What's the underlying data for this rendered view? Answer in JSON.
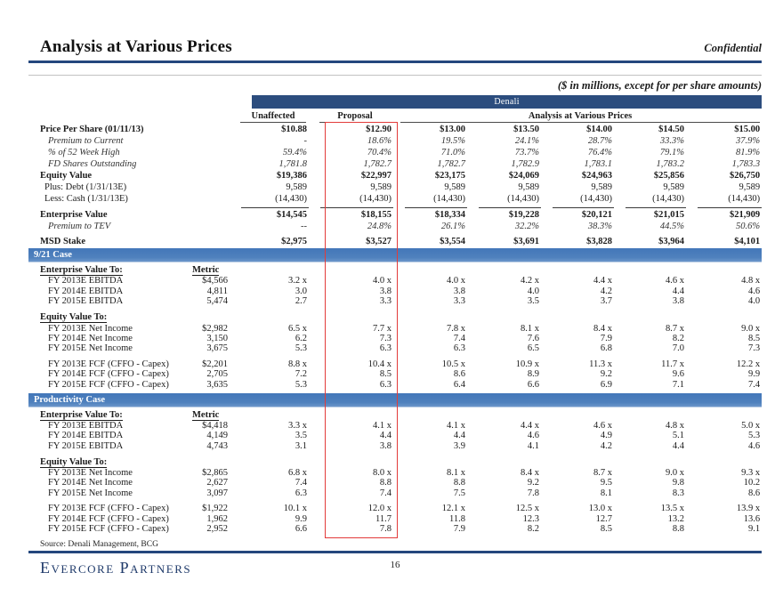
{
  "page": {
    "title": "Analysis at Various Prices",
    "confidential": "Confidential",
    "units_note": "($ in millions, except for per share amounts)",
    "source": "Source: Denali Management, BCG",
    "footer_logo": "Evercore Partners",
    "page_number": "16"
  },
  "colors": {
    "accent_navy": "#24477d",
    "company_band_navy": "#2c4d7e",
    "case_band_blue": "#4f81bd",
    "highlight_red": "#e23b3a"
  },
  "table": {
    "company_band": "Denali",
    "col_headers": {
      "unaffected": "Unaffected",
      "proposal": "Proposal",
      "avp": "Analysis at Various Prices"
    },
    "price_columns": [
      "$13.00",
      "$13.50",
      "$14.00",
      "$14.50",
      "$15.00"
    ],
    "top_rows": [
      {
        "label": "Price Per Share (01/11/13)",
        "style": "bold",
        "values": [
          "$10.88",
          "$12.90",
          "$13.00",
          "$13.50",
          "$14.00",
          "$14.50",
          "$15.00"
        ]
      },
      {
        "label": "Premium to Current",
        "style": "italic",
        "values": [
          "-",
          "18.6%",
          "19.5%",
          "24.1%",
          "28.7%",
          "33.3%",
          "37.9%"
        ]
      },
      {
        "label": "% of 52 Week High",
        "style": "italic",
        "values": [
          "59.4%",
          "70.4%",
          "71.0%",
          "73.7%",
          "76.4%",
          "79.1%",
          "81.9%"
        ]
      },
      {
        "label": "FD Shares Outstanding",
        "style": "italic",
        "values": [
          "1,781.8",
          "1,782.7",
          "1,782.7",
          "1,782.9",
          "1,783.1",
          "1,783.2",
          "1,783.3"
        ]
      },
      {
        "label": "Equity Value",
        "style": "bold",
        "values": [
          "$19,386",
          "$22,997",
          "$23,175",
          "$24,069",
          "$24,963",
          "$25,856",
          "$26,750"
        ]
      },
      {
        "label": "Plus: Debt (1/31/13E)",
        "style": "sub",
        "values": [
          "9,589",
          "9,589",
          "9,589",
          "9,589",
          "9,589",
          "9,589",
          "9,589"
        ]
      },
      {
        "label": "Less: Cash (1/31/13E)",
        "style": "sub",
        "values": [
          "(14,430)",
          "(14,430)",
          "(14,430)",
          "(14,430)",
          "(14,430)",
          "(14,430)",
          "(14,430)"
        ]
      },
      {
        "label": "Enterprise Value",
        "style": "bold total",
        "values": [
          "$14,545",
          "$18,155",
          "$18,334",
          "$19,228",
          "$20,121",
          "$21,015",
          "$21,909"
        ]
      },
      {
        "label": "Premium to TEV",
        "style": "italic",
        "values": [
          "--",
          "24.8%",
          "26.1%",
          "32.2%",
          "38.3%",
          "44.5%",
          "50.6%"
        ]
      },
      {
        "label": "MSD Stake",
        "style": "bold msd",
        "values": [
          "$2,975",
          "$3,527",
          "$3,554",
          "$3,691",
          "$3,828",
          "$3,964",
          "$4,101"
        ]
      }
    ],
    "sections": [
      {
        "band": "9/21 Case",
        "groups": [
          {
            "header": "Enterprise Value To:",
            "metric_header": "Metric",
            "rows": [
              {
                "label": "FY 2013E EBITDA",
                "metric": "$4,566",
                "values": [
                  "3.2 x",
                  "4.0 x",
                  "4.0 x",
                  "4.2 x",
                  "4.4 x",
                  "4.6 x",
                  "4.8 x"
                ]
              },
              {
                "label": "FY 2014E EBITDA",
                "metric": "4,811",
                "values": [
                  "3.0",
                  "3.8",
                  "3.8",
                  "4.0",
                  "4.2",
                  "4.4",
                  "4.6"
                ]
              },
              {
                "label": "FY 2015E EBITDA",
                "metric": "5,474",
                "values": [
                  "2.7",
                  "3.3",
                  "3.3",
                  "3.5",
                  "3.7",
                  "3.8",
                  "4.0"
                ]
              }
            ]
          },
          {
            "header": "Equity Value To:",
            "metric_header": null,
            "rows": [
              {
                "label": "FY 2013E Net Income",
                "metric": "$2,982",
                "values": [
                  "6.5 x",
                  "7.7 x",
                  "7.8 x",
                  "8.1 x",
                  "8.4 x",
                  "8.7 x",
                  "9.0 x"
                ]
              },
              {
                "label": "FY 2014E Net Income",
                "metric": "3,150",
                "values": [
                  "6.2",
                  "7.3",
                  "7.4",
                  "7.6",
                  "7.9",
                  "8.2",
                  "8.5"
                ]
              },
              {
                "label": "FY 2015E Net Income",
                "metric": "3,675",
                "values": [
                  "5.3",
                  "6.3",
                  "6.3",
                  "6.5",
                  "6.8",
                  "7.0",
                  "7.3"
                ]
              }
            ]
          },
          {
            "header": null,
            "metric_header": null,
            "rows": [
              {
                "label": "FY 2013E FCF (CFFO - Capex)",
                "metric": "$2,201",
                "values": [
                  "8.8 x",
                  "10.4 x",
                  "10.5 x",
                  "10.9 x",
                  "11.3 x",
                  "11.7 x",
                  "12.2 x"
                ]
              },
              {
                "label": "FY 2014E FCF (CFFO - Capex)",
                "metric": "2,705",
                "values": [
                  "7.2",
                  "8.5",
                  "8.6",
                  "8.9",
                  "9.2",
                  "9.6",
                  "9.9"
                ]
              },
              {
                "label": "FY 2015E FCF (CFFO - Capex)",
                "metric": "3,635",
                "values": [
                  "5.3",
                  "6.3",
                  "6.4",
                  "6.6",
                  "6.9",
                  "7.1",
                  "7.4"
                ]
              }
            ]
          }
        ]
      },
      {
        "band": "Productivity Case",
        "groups": [
          {
            "header": "Enterprise Value To:",
            "metric_header": "Metric",
            "rows": [
              {
                "label": "FY 2013E EBITDA",
                "metric": "$4,418",
                "values": [
                  "3.3 x",
                  "4.1 x",
                  "4.1 x",
                  "4.4 x",
                  "4.6 x",
                  "4.8 x",
                  "5.0 x"
                ]
              },
              {
                "label": "FY 2014E EBITDA",
                "metric": "4,149",
                "values": [
                  "3.5",
                  "4.4",
                  "4.4",
                  "4.6",
                  "4.9",
                  "5.1",
                  "5.3"
                ]
              },
              {
                "label": "FY 2015E EBITDA",
                "metric": "4,743",
                "values": [
                  "3.1",
                  "3.8",
                  "3.9",
                  "4.1",
                  "4.2",
                  "4.4",
                  "4.6"
                ]
              }
            ]
          },
          {
            "header": "Equity Value To:",
            "metric_header": null,
            "rows": [
              {
                "label": "FY 2013E Net Income",
                "metric": "$2,865",
                "values": [
                  "6.8 x",
                  "8.0 x",
                  "8.1 x",
                  "8.4 x",
                  "8.7 x",
                  "9.0 x",
                  "9.3 x"
                ]
              },
              {
                "label": "FY 2014E Net Income",
                "metric": "2,627",
                "values": [
                  "7.4",
                  "8.8",
                  "8.8",
                  "9.2",
                  "9.5",
                  "9.8",
                  "10.2"
                ]
              },
              {
                "label": "FY 2015E Net Income",
                "metric": "3,097",
                "values": [
                  "6.3",
                  "7.4",
                  "7.5",
                  "7.8",
                  "8.1",
                  "8.3",
                  "8.6"
                ]
              }
            ]
          },
          {
            "header": null,
            "metric_header": null,
            "rows": [
              {
                "label": "FY 2013E FCF (CFFO - Capex)",
                "metric": "$1,922",
                "values": [
                  "10.1 x",
                  "12.0 x",
                  "12.1 x",
                  "12.5 x",
                  "13.0 x",
                  "13.5 x",
                  "13.9 x"
                ]
              },
              {
                "label": "FY 2014E FCF (CFFO - Capex)",
                "metric": "1,962",
                "values": [
                  "9.9",
                  "11.7",
                  "11.8",
                  "12.3",
                  "12.7",
                  "13.2",
                  "13.6"
                ]
              },
              {
                "label": "FY 2015E FCF (CFFO - Capex)",
                "metric": "2,952",
                "values": [
                  "6.6",
                  "7.8",
                  "7.9",
                  "8.2",
                  "8.5",
                  "8.8",
                  "9.1"
                ]
              }
            ]
          }
        ]
      }
    ]
  }
}
